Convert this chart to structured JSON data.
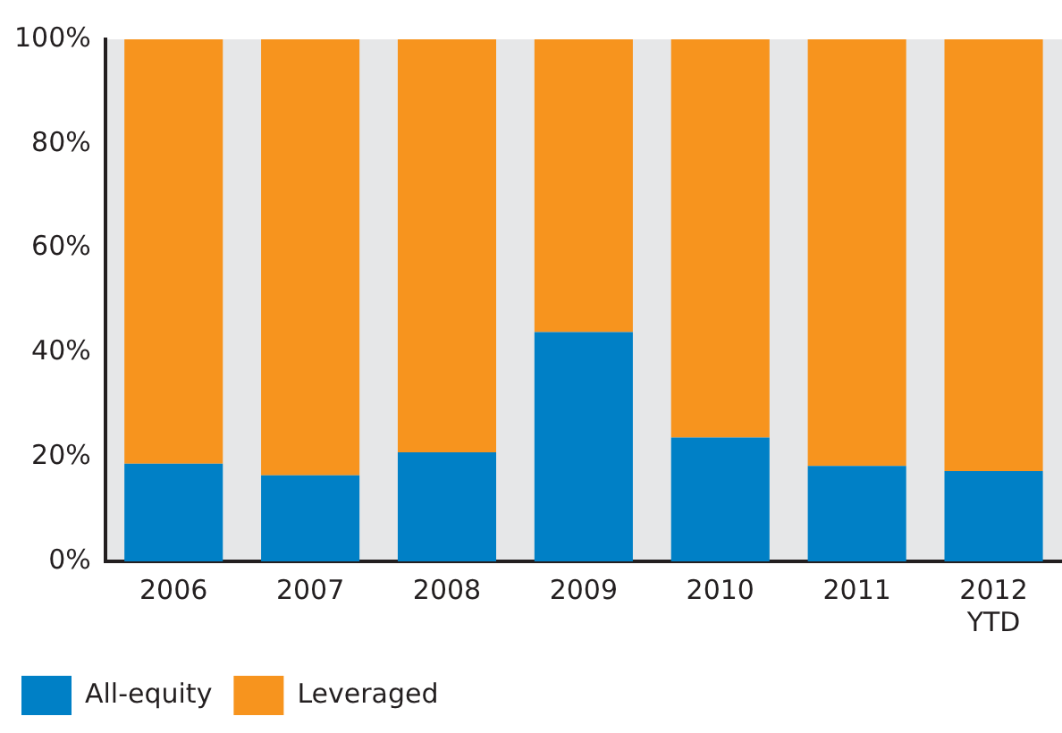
{
  "chart_data": {
    "type": "bar",
    "stacked": true,
    "categories": [
      "2006",
      "2007",
      "2008",
      "2009",
      "2010",
      "2011",
      "2012 YTD"
    ],
    "series": [
      {
        "name": "All-equity",
        "color": "#0080c6",
        "values": [
          18.7,
          16.5,
          20.9,
          43.9,
          23.7,
          18.3,
          17.3
        ]
      },
      {
        "name": "Leveraged",
        "color": "#f7941e",
        "values": [
          81.3,
          83.5,
          79.1,
          56.1,
          76.3,
          81.7,
          82.7
        ]
      }
    ],
    "ylim": [
      0,
      100
    ],
    "yticks": [
      {
        "value": 0,
        "label": "0%"
      },
      {
        "value": 20,
        "label": "20%"
      },
      {
        "value": 40,
        "label": "40%"
      },
      {
        "value": 60,
        "label": "60%"
      },
      {
        "value": 80,
        "label": "80%"
      },
      {
        "value": 100,
        "label": "100%"
      }
    ],
    "grid": false,
    "legend": "bottom left"
  }
}
